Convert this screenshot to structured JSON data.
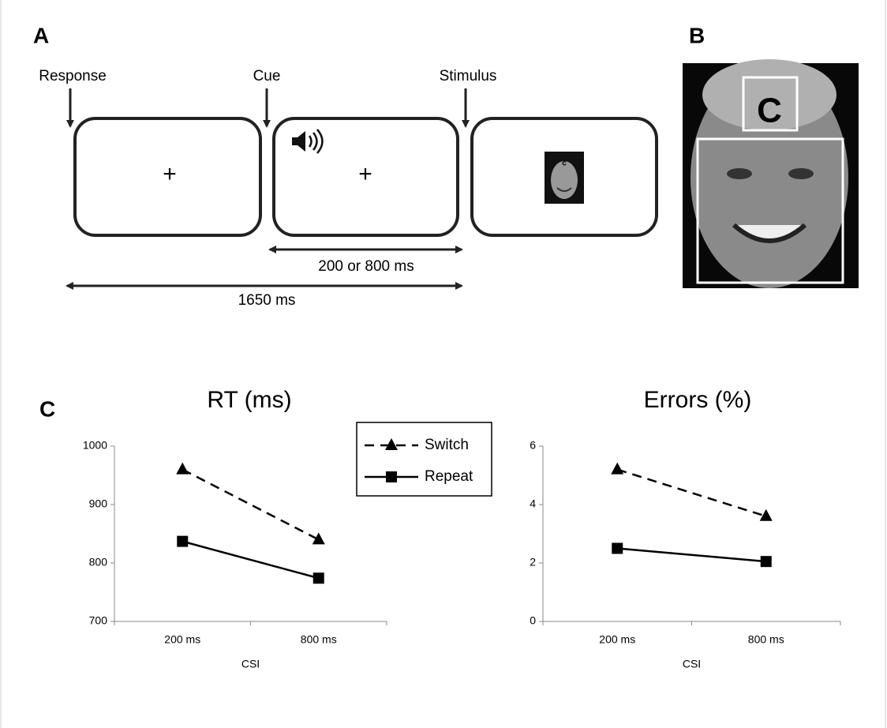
{
  "panel_labels": [
    "A",
    "B",
    "C"
  ],
  "timeline": {
    "events": [
      "Response",
      "Cue",
      "Stimulus"
    ],
    "fixation": "+",
    "face_cue": "c",
    "intervals": [
      "200 or 800 ms",
      "1650 ms"
    ]
  },
  "stimulus_example": {
    "cue_letter": "C"
  },
  "chart_data": [
    {
      "type": "line",
      "title": "RT (ms)",
      "xlabel": "CSI",
      "categories": [
        "200 ms",
        "800 ms"
      ],
      "series": [
        {
          "name": "Switch",
          "color": "#000000",
          "dash": "dashed",
          "marker": "triangle",
          "values": [
            960,
            840
          ]
        },
        {
          "name": "Repeat",
          "color": "#000000",
          "dash": "solid",
          "marker": "square",
          "values": [
            837,
            774
          ]
        }
      ],
      "ylim": [
        700,
        1000
      ],
      "yticks": [
        700,
        800,
        900,
        1000
      ],
      "legend": true
    },
    {
      "type": "line",
      "title": "Errors (%)",
      "xlabel": "CSI",
      "categories": [
        "200 ms",
        "800 ms"
      ],
      "series": [
        {
          "color": "#000000",
          "dash": "dashed",
          "marker": "triangle",
          "values": [
            5.2,
            3.6
          ]
        },
        {
          "color": "#000000",
          "dash": "solid",
          "marker": "square",
          "values": [
            2.5,
            2.05
          ]
        }
      ],
      "ylim": [
        0,
        6
      ],
      "yticks": [
        0,
        2,
        4,
        6
      ],
      "legend": false
    }
  ]
}
